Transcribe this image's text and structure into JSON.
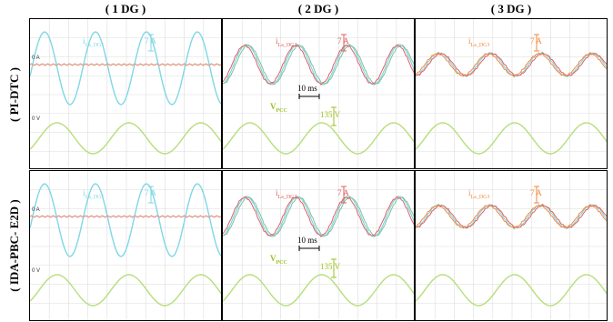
{
  "columns": [
    "( 1 DG )",
    "( 2 DG )",
    "( 3 DG )"
  ],
  "rows": [
    "( PI-DTC )",
    "( IDA-PBC- E2D )"
  ],
  "colors": {
    "dg1": "#7fd7e6",
    "dg2": "#e06060",
    "dg3": "#f08a3a",
    "vpcc": "#b6de7a",
    "vpcc_label": "#9ac21e",
    "dg2_trace": "#7fbf9e",
    "flat": "#e0a090",
    "grid": "#dcdcdc"
  },
  "panels": [
    {
      "row": 0,
      "col": 0,
      "current_label": "i",
      "current_sub": "La_DG1",
      "scale": "7 A",
      "color_key": "dg1",
      "zero_a": "0 A",
      "zero_v": "0 V",
      "vpcc_label": "",
      "vpcc_sub": "",
      "vpcc_scale": "",
      "time_scale": ""
    },
    {
      "row": 0,
      "col": 1,
      "current_label": "i",
      "current_sub": "La_DG2",
      "scale": "7 A",
      "color_key": "dg2",
      "zero_a": "",
      "zero_v": "",
      "vpcc_label": "V",
      "vpcc_sub": "PCC",
      "vpcc_scale": "135 V",
      "time_scale": "10 ms"
    },
    {
      "row": 0,
      "col": 2,
      "current_label": "i",
      "current_sub": "La_DG3",
      "scale": "7 A",
      "color_key": "dg3",
      "zero_a": "",
      "zero_v": "",
      "vpcc_label": "",
      "vpcc_sub": "",
      "vpcc_scale": "",
      "time_scale": ""
    },
    {
      "row": 1,
      "col": 0,
      "current_label": "i",
      "current_sub": "La_DG1",
      "scale": "7 A",
      "color_key": "dg1",
      "zero_a": "0 A",
      "zero_v": "0 V",
      "vpcc_label": "",
      "vpcc_sub": "",
      "vpcc_scale": "",
      "time_scale": ""
    },
    {
      "row": 1,
      "col": 1,
      "current_label": "i",
      "current_sub": "La_DG2",
      "scale": "7 A",
      "color_key": "dg2",
      "zero_a": "",
      "zero_v": "",
      "vpcc_label": "V",
      "vpcc_sub": "PCC",
      "vpcc_scale": "135 V",
      "time_scale": "10 ms"
    },
    {
      "row": 1,
      "col": 2,
      "current_label": "i",
      "current_sub": "La_DG3",
      "scale": "7 A",
      "color_key": "dg3",
      "zero_a": "",
      "zero_v": "",
      "vpcc_label": "",
      "vpcc_sub": "",
      "vpcc_scale": "",
      "time_scale": ""
    }
  ]
}
